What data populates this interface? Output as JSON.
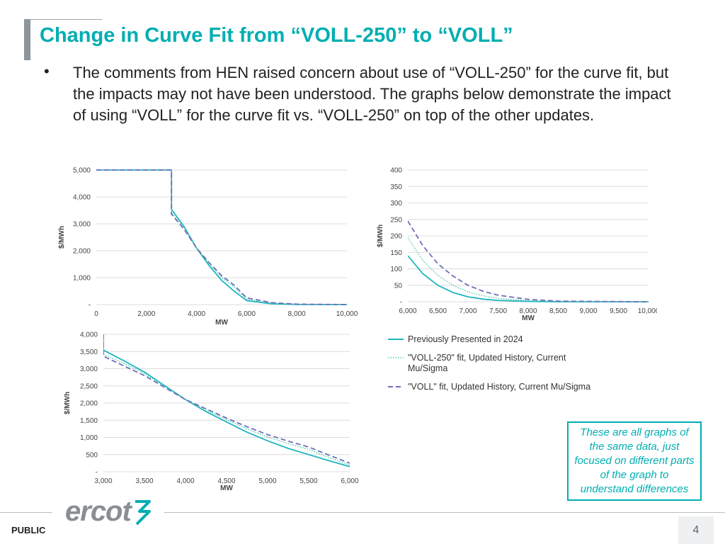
{
  "slide": {
    "title": "Change in Curve Fit from “VOLL-250” to “VOLL”",
    "bullet_symbol": "•",
    "bullet_text": "The comments from HEN raised concern about use of “VOLL-250” for the curve fit, but the impacts may not have been understood.  The graphs below demonstrate the impact of using “VOLL” for the curve fit vs. “VOLL-250” on top of the other updates.",
    "note": "These are all graphs of the same data, just focused on different parts of the graph to understand differences",
    "footer": {
      "label": "PUBLIC",
      "logo_text": "ercot",
      "page_number": "4"
    }
  },
  "legend": [
    {
      "label": "Previously Presented in 2024",
      "style": "solid",
      "color": "#1fb5bf"
    },
    {
      "label": "\"VOLL-250\" fit, Updated History, Current Mu/Sigma",
      "style": "dotted",
      "color": "#4cc9a9"
    },
    {
      "label": "\"VOLL\" fit, Updated History, Current Mu/Sigma",
      "style": "dashed",
      "color": "#6f6fb8"
    }
  ],
  "chart_data": [
    {
      "type": "line",
      "xlabel": "MW",
      "ylabel": "$/MWh",
      "xlim": [
        0,
        10000
      ],
      "ylim": [
        0,
        5000
      ],
      "x_ticks": [
        "0",
        "2,000",
        "4,000",
        "6,000",
        "8,000",
        "10,000"
      ],
      "y_ticks": [
        "-",
        "1,000",
        "2,000",
        "3,000",
        "4,000",
        "5,000"
      ],
      "grid": "horizontal",
      "series": [
        {
          "x": [
            0,
            3000,
            3000,
            3500,
            4000,
            4500,
            5000,
            5500,
            6000,
            7000,
            8000,
            10000
          ],
          "values": [
            5000,
            5000,
            3540,
            2900,
            2100,
            1450,
            900,
            500,
            150,
            30,
            5,
            0
          ]
        },
        {
          "x": [
            0,
            3000,
            3000,
            3500,
            4000,
            4500,
            5000,
            5500,
            6000,
            7000,
            8000,
            10000
          ],
          "values": [
            5000,
            5000,
            3420,
            2860,
            2100,
            1520,
            1010,
            650,
            200,
            50,
            10,
            0
          ]
        },
        {
          "x": [
            0,
            3000,
            3000,
            3500,
            4000,
            4500,
            5000,
            5500,
            6000,
            7000,
            8000,
            10000
          ],
          "values": [
            5000,
            5000,
            3360,
            2800,
            2100,
            1560,
            1080,
            720,
            250,
            70,
            15,
            0
          ]
        }
      ]
    },
    {
      "type": "line",
      "xlabel": "MW",
      "ylabel": "$/MWh",
      "xlim": [
        6000,
        10000
      ],
      "ylim": [
        0,
        400
      ],
      "x_ticks": [
        "6,000",
        "6,500",
        "7,000",
        "7,500",
        "8,000",
        "8,500",
        "9,000",
        "9,500",
        "10,000"
      ],
      "y_ticks": [
        "-",
        "50",
        "100",
        "150",
        "200",
        "250",
        "300",
        "350",
        "400"
      ],
      "grid": "horizontal",
      "series": [
        {
          "x": [
            6000,
            6250,
            6500,
            6750,
            7000,
            7250,
            7500,
            8000,
            8500,
            9000,
            10000
          ],
          "values": [
            140,
            85,
            50,
            28,
            15,
            8,
            4,
            1,
            0,
            0,
            0
          ]
        },
        {
          "x": [
            6000,
            6250,
            6500,
            6750,
            7000,
            7250,
            7500,
            8000,
            8500,
            9000,
            10000
          ],
          "values": [
            195,
            125,
            80,
            50,
            30,
            18,
            10,
            3,
            1,
            0,
            0
          ]
        },
        {
          "x": [
            6000,
            6250,
            6500,
            6750,
            7000,
            7250,
            7500,
            8000,
            8500,
            9000,
            10000
          ],
          "values": [
            245,
            170,
            115,
            78,
            50,
            32,
            20,
            7,
            2,
            1,
            0
          ]
        }
      ]
    },
    {
      "type": "line",
      "xlabel": "MW",
      "ylabel": "$/MWh",
      "xlim": [
        3000,
        6000
      ],
      "ylim": [
        0,
        4000
      ],
      "x_ticks": [
        "3,000",
        "3,500",
        "4,000",
        "4,500",
        "5,000",
        "5,500",
        "6,000"
      ],
      "y_ticks": [
        "-",
        "500",
        "1,000",
        "1,500",
        "2,000",
        "2,500",
        "3,000",
        "3,500",
        "4,000"
      ],
      "grid": "horizontal",
      "series": [
        {
          "x": [
            3000,
            3000,
            3250,
            3500,
            3750,
            4000,
            4250,
            4500,
            4750,
            5000,
            5250,
            5500,
            5750,
            6000
          ],
          "values": [
            4000,
            3540,
            3230,
            2900,
            2500,
            2100,
            1750,
            1450,
            1150,
            900,
            680,
            500,
            320,
            150
          ]
        },
        {
          "x": [
            3000,
            3000,
            3250,
            3500,
            3750,
            4000,
            4250,
            4500,
            4750,
            5000,
            5250,
            5500,
            5750,
            6000
          ],
          "values": [
            4000,
            3420,
            3150,
            2860,
            2480,
            2100,
            1800,
            1520,
            1250,
            1010,
            820,
            650,
            410,
            200
          ]
        },
        {
          "x": [
            3000,
            3000,
            3250,
            3500,
            3750,
            4000,
            4250,
            4500,
            4750,
            5000,
            5250,
            5500,
            5750,
            6000
          ],
          "values": [
            4000,
            3360,
            3080,
            2800,
            2450,
            2100,
            1830,
            1560,
            1310,
            1080,
            890,
            720,
            480,
            250
          ]
        }
      ]
    }
  ]
}
